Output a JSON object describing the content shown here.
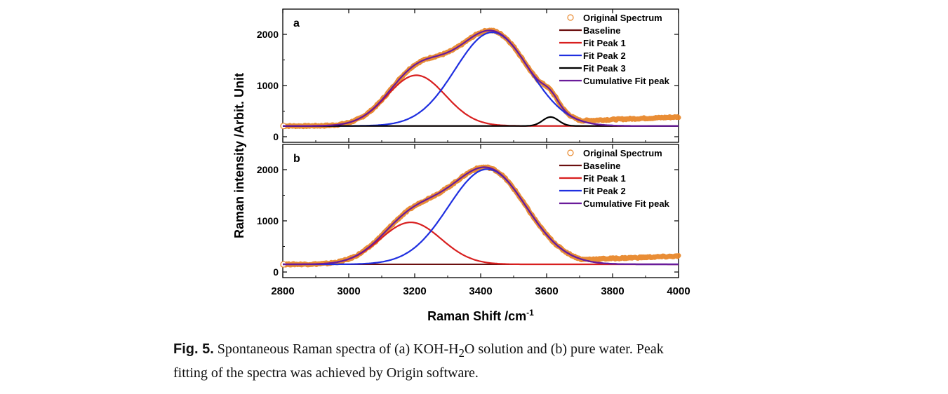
{
  "chart_data": [
    {
      "type": "line",
      "panel_label": "a",
      "xlim": [
        2800,
        4000
      ],
      "ylim": [
        0,
        2300
      ],
      "yticks": [
        0,
        1000,
        2000
      ],
      "components": [
        {
          "name": "Baseline",
          "kind": "baseline",
          "value": 210,
          "color": "#6b0f0f"
        },
        {
          "name": "Fit Peak 1",
          "kind": "gaussian",
          "center": 3205,
          "amplitude": 990,
          "sigma": 88,
          "color": "#d81f1f"
        },
        {
          "name": "Fit Peak 2",
          "kind": "gaussian",
          "center": 3435,
          "amplitude": 1830,
          "sigma": 112,
          "color": "#1f2fe0"
        },
        {
          "name": "Fit Peak 3",
          "kind": "gaussian",
          "center": 3612,
          "amplitude": 175,
          "sigma": 24,
          "color": "#000000"
        },
        {
          "name": "Cumulative Fit peak",
          "kind": "sum",
          "color": "#6a1b9a"
        }
      ],
      "original_spectrum": {
        "name": "Original Spectrum",
        "color": "#e8872a",
        "tail_end_value": 385
      },
      "legend": [
        "Original Spectrum",
        "Baseline",
        "Fit Peak 1",
        "Fit Peak 2",
        "Fit Peak 3",
        "Cumulative Fit peak"
      ]
    },
    {
      "type": "line",
      "panel_label": "b",
      "xlim": [
        2800,
        4000
      ],
      "ylim": [
        0,
        2300
      ],
      "yticks": [
        0,
        1000,
        2000
      ],
      "components": [
        {
          "name": "Baseline",
          "kind": "baseline",
          "value": 150,
          "color": "#6b0f0f"
        },
        {
          "name": "Fit Peak 1",
          "kind": "gaussian",
          "center": 3188,
          "amplitude": 820,
          "sigma": 92,
          "color": "#d81f1f"
        },
        {
          "name": "Fit Peak 2",
          "kind": "gaussian",
          "center": 3420,
          "amplitude": 1860,
          "sigma": 118,
          "color": "#1f2fe0"
        },
        {
          "name": "Cumulative Fit peak",
          "kind": "sum",
          "color": "#6a1b9a"
        }
      ],
      "original_spectrum": {
        "name": "Original Spectrum",
        "color": "#e8872a",
        "tail_end_value": 310
      },
      "legend": [
        "Original Spectrum",
        "Baseline",
        "Fit Peak 1",
        "Fit Peak 2",
        "Cumulative Fit peak"
      ]
    }
  ],
  "axes": {
    "xlabel": "Raman Shift /cm",
    "xlabel_superscript": "-1",
    "ylabel": "Raman intensity /Arbit. Unit",
    "xticks": [
      2800,
      3000,
      3200,
      3400,
      3600,
      3800,
      4000
    ]
  },
  "caption": {
    "label": "Fig. 5.",
    "line1": "Spontaneous Raman spectra of (a) KOH-H",
    "subscript": "2",
    "line1_rest": "O solution and (b) pure water.  Peak",
    "line2": "fitting of the spectra was achieved by Origin software."
  }
}
